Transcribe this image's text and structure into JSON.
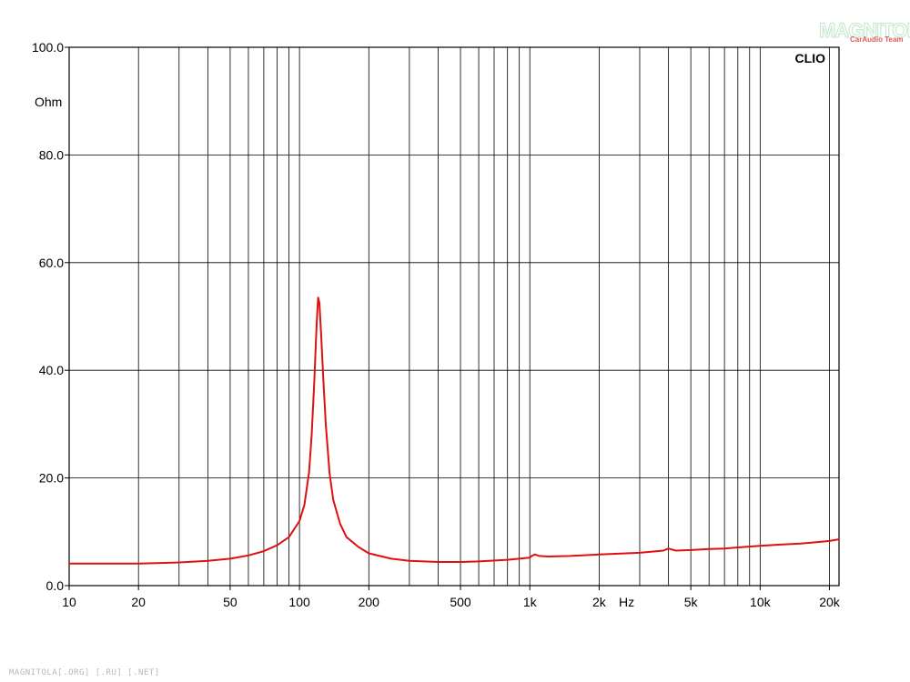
{
  "chart_data": {
    "type": "line",
    "title": "",
    "xlabel": "Hz",
    "ylabel": "Ohm",
    "x_scale": "log",
    "xlim": [
      10,
      22000
    ],
    "ylim": [
      0,
      100
    ],
    "grid": true,
    "brand_label": "CLIO",
    "y_ticks": [
      {
        "value": 0,
        "label": "0.0"
      },
      {
        "value": 20,
        "label": "20.0"
      },
      {
        "value": 40,
        "label": "40.0"
      },
      {
        "value": 60,
        "label": "60.0"
      },
      {
        "value": 80,
        "label": "80.0"
      },
      {
        "value": 100,
        "label": "100.0"
      }
    ],
    "x_ticks": [
      {
        "value": 10,
        "label": "10"
      },
      {
        "value": 20,
        "label": "20"
      },
      {
        "value": 50,
        "label": "50"
      },
      {
        "value": 100,
        "label": "100"
      },
      {
        "value": 200,
        "label": "200"
      },
      {
        "value": 500,
        "label": "500"
      },
      {
        "value": 1000,
        "label": "1k"
      },
      {
        "value": 2000,
        "label": "2k"
      },
      {
        "value": 5000,
        "label": "5k"
      },
      {
        "value": 10000,
        "label": "10k"
      },
      {
        "value": 20000,
        "label": "20k"
      }
    ],
    "series": [
      {
        "color": "#e01010",
        "x": [
          10,
          15,
          20,
          25,
          30,
          40,
          50,
          60,
          70,
          80,
          90,
          100,
          105,
          110,
          113,
          116,
          118,
          119.5,
          120.5,
          122,
          124,
          127,
          130,
          135,
          140,
          150,
          160,
          180,
          200,
          250,
          300,
          400,
          500,
          600,
          800,
          1000,
          1020,
          1050,
          1100,
          1200,
          1500,
          2000,
          3000,
          3800,
          4000,
          4300,
          5000,
          6000,
          7000,
          8000,
          10000,
          12000,
          15000,
          20000,
          22000
        ],
        "y": [
          4.1,
          4.1,
          4.1,
          4.2,
          4.3,
          4.6,
          5.0,
          5.6,
          6.4,
          7.5,
          9.0,
          12.0,
          15.0,
          21.0,
          28.0,
          38.0,
          46.0,
          51.0,
          53.5,
          52.5,
          47.0,
          38.0,
          30.0,
          21.0,
          16.0,
          11.5,
          9.0,
          7.2,
          6.0,
          5.0,
          4.6,
          4.4,
          4.4,
          4.5,
          4.8,
          5.2,
          5.5,
          5.8,
          5.5,
          5.4,
          5.5,
          5.8,
          6.1,
          6.5,
          6.9,
          6.5,
          6.6,
          6.8,
          6.9,
          7.1,
          7.4,
          7.6,
          7.8,
          8.3,
          8.6
        ]
      }
    ]
  },
  "watermark": {
    "logo_text": "MAGNITOLA",
    "logo_subtext": "CarAudio Team",
    "footer_text": "MAGNITOLA[.ORG] [.RU] [.NET]"
  }
}
